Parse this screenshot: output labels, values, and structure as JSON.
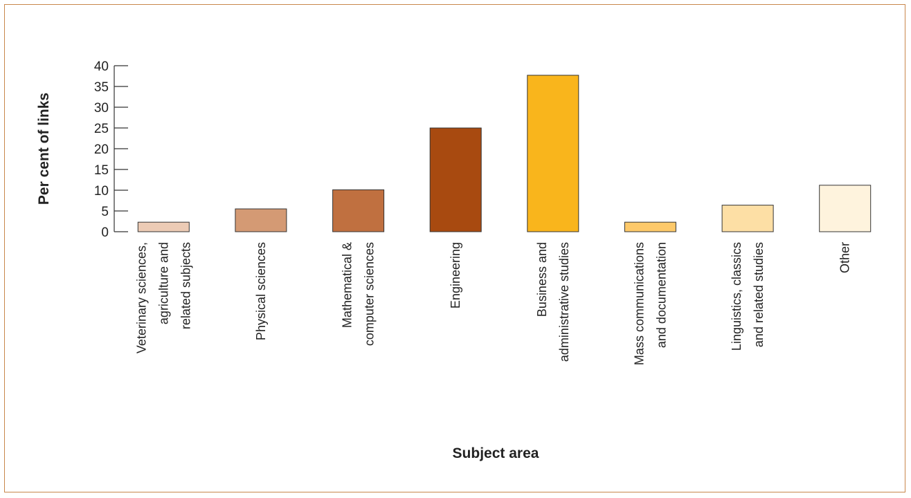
{
  "chart_data": {
    "type": "bar",
    "title": "",
    "xlabel": "Subject area",
    "ylabel": "Per cent of links",
    "ylim": [
      0,
      40
    ],
    "yticks": [
      0,
      5,
      10,
      15,
      20,
      25,
      30,
      35,
      40
    ],
    "grid": false,
    "legend": "none",
    "categories": [
      "Veterinary sciences, agriculture and related subjects",
      "Physical sciences",
      "Mathematical & computer sciences",
      "Engineering",
      "Business and administrative studies",
      "Mass communications and documentation",
      "Linguistics, classics and related studies",
      "Other"
    ],
    "category_lines": [
      [
        "Veterinary sciences,",
        "agriculture and",
        "related subjects"
      ],
      [
        "Physical sciences"
      ],
      [
        "Mathematical &",
        "computer sciences"
      ],
      [
        "Engineering"
      ],
      [
        "Business and",
        "administrative studies"
      ],
      [
        "Mass communications",
        "and documentation"
      ],
      [
        "Linguistics, classics",
        "and related studies"
      ],
      [
        "Other"
      ]
    ],
    "values": [
      2.3,
      5.5,
      10.1,
      25.0,
      37.7,
      2.3,
      6.4,
      11.2
    ],
    "colors": [
      "#eccbb5",
      "#d49a74",
      "#c07040",
      "#a84a10",
      "#f9b51c",
      "#fdc96a",
      "#fddfa5",
      "#fef3dd"
    ]
  }
}
